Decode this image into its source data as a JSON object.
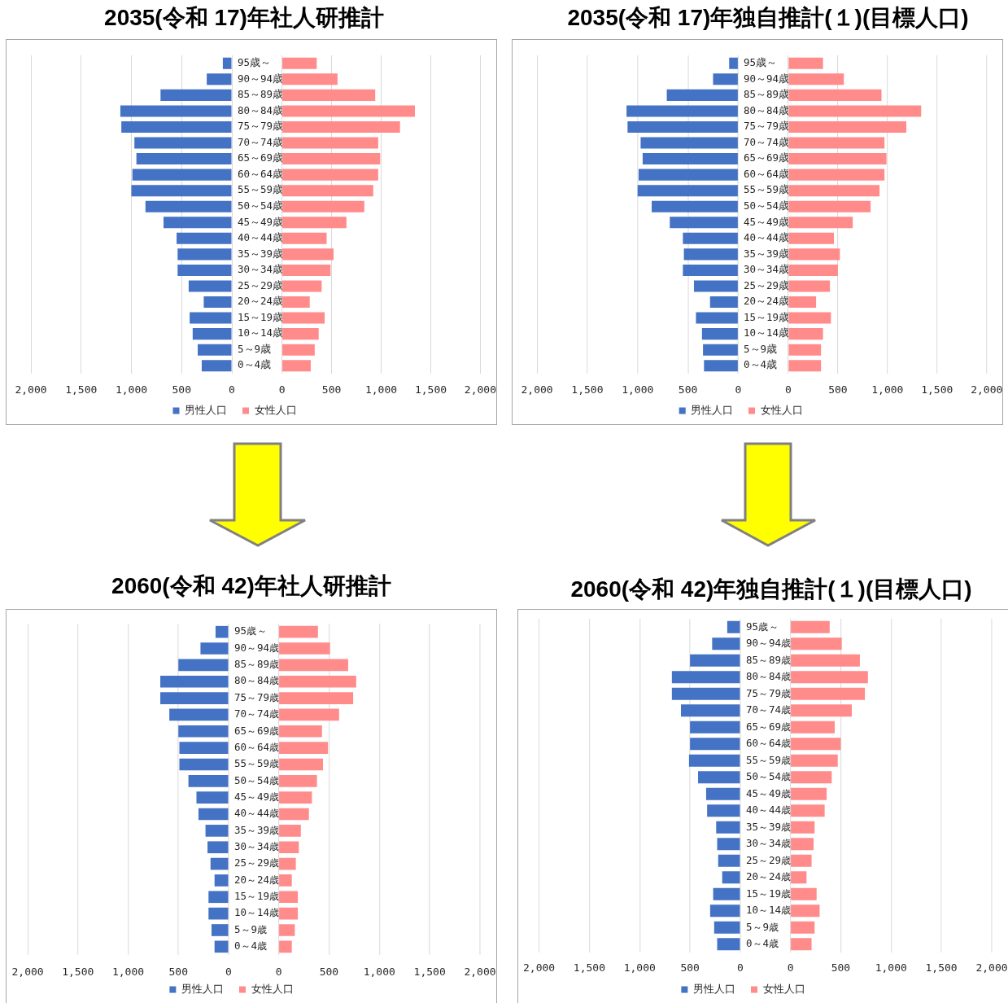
{
  "chart_data": [
    {
      "type": "bar",
      "orientation": "horizontal",
      "title": "2035(令和 17)年社人研推計",
      "categories": [
        null,
        null,
        null,
        null,
        null,
        null,
        null,
        null,
        null,
        null,
        null,
        null,
        null,
        null,
        null,
        null,
        null,
        null,
        null,
        null
      ],
      "series": [
        {
          "name": "男性人口",
          "color": "#4472c4",
          "values": [
            90,
            250,
            710,
            1110,
            1100,
            970,
            950,
            990,
            1000,
            860,
            680,
            550,
            540,
            540,
            430,
            280,
            420,
            390,
            340,
            300
          ]
        }
      ],
      "xlim": [
        2000,
        0
      ],
      "xticks": [
        {
          "value": 2000,
          "label": "2,000"
        },
        {
          "value": 1500,
          "label": "1,500"
        },
        {
          "value": 1000,
          "label": "1,000"
        },
        {
          "value": 500,
          "label": "500"
        },
        {
          "value": 0,
          "label": "0"
        }
      ],
      "grid": "x",
      "legend": "bottom right"
    },
    {
      "type": "bar",
      "orientation": "horizontal",
      "categories": [
        "95歳～",
        "90～94歳",
        "85～89歳",
        "80～84歳",
        "75～79歳",
        "70～74歳",
        "65～69歳",
        "60～64歳",
        "55～59歳",
        "50～54歳",
        "45～49歳",
        "40～44歳",
        "35～39歳",
        "30～34歳",
        "25～29歳",
        "20～24歳",
        "15～19歳",
        "10～14歳",
        "5～9歳",
        "0～4歳"
      ],
      "series": [
        {
          "name": "女性人口",
          "color": "#ff8b8b",
          "values": [
            350,
            560,
            940,
            1340,
            1190,
            970,
            990,
            970,
            920,
            830,
            650,
            450,
            520,
            490,
            400,
            280,
            430,
            370,
            330,
            290
          ]
        }
      ],
      "xlim": [
        0,
        2000
      ],
      "xticks": [
        {
          "value": 0,
          "label": "0"
        },
        {
          "value": 500,
          "label": "500"
        },
        {
          "value": 1000,
          "label": "1,000"
        },
        {
          "value": 1500,
          "label": "1,500"
        },
        {
          "value": 2000,
          "label": "2,000"
        }
      ],
      "grid": "x",
      "legend": "bottom left"
    },
    {
      "type": "bar",
      "orientation": "horizontal",
      "title": "2035(令和 17)年独自推計(１)(目標人口)",
      "categories": [
        null,
        null,
        null,
        null,
        null,
        null,
        null,
        null,
        null,
        null,
        null,
        null,
        null,
        null,
        null,
        null,
        null,
        null,
        null,
        null
      ],
      "series": [
        {
          "name": "男性人口",
          "color": "#4472c4",
          "values": [
            90,
            250,
            710,
            1110,
            1100,
            970,
            950,
            990,
            1000,
            860,
            680,
            550,
            540,
            550,
            440,
            280,
            420,
            360,
            350,
            340
          ]
        }
      ],
      "xlim": [
        2000,
        0
      ],
      "xticks": [
        {
          "value": 2000,
          "label": "2,000"
        },
        {
          "value": 1500,
          "label": "1,500"
        },
        {
          "value": 1000,
          "label": "1,000"
        },
        {
          "value": 500,
          "label": "500"
        },
        {
          "value": 0,
          "label": "0"
        }
      ],
      "grid": "x",
      "legend": "bottom right"
    },
    {
      "type": "bar",
      "orientation": "horizontal",
      "categories": [
        "95歳～",
        "90～94歳",
        "85～89歳",
        "80～84歳",
        "75～79歳",
        "70～74歳",
        "65～69歳",
        "60～64歳",
        "55～59歳",
        "50～54歳",
        "45～49歳",
        "40～44歳",
        "35～39歳",
        "30～34歳",
        "25～29歳",
        "20～24歳",
        "15～19歳",
        "10～14歳",
        "5～9歳",
        "0～4歳"
      ],
      "series": [
        {
          "name": "女性人口",
          "color": "#ff8b8b",
          "values": [
            350,
            560,
            940,
            1340,
            1190,
            970,
            990,
            970,
            920,
            830,
            650,
            460,
            520,
            500,
            420,
            280,
            430,
            350,
            330,
            330
          ]
        }
      ],
      "xlim": [
        0,
        2000
      ],
      "xticks": [
        {
          "value": 0,
          "label": "0"
        },
        {
          "value": 500,
          "label": "500"
        },
        {
          "value": 1000,
          "label": "1,000"
        },
        {
          "value": 1500,
          "label": "1,500"
        },
        {
          "value": 2000,
          "label": "2,000"
        }
      ],
      "grid": "x",
      "legend": "bottom left"
    },
    {
      "type": "bar",
      "orientation": "horizontal",
      "title": "2060(令和 42)年社人研推計",
      "categories": [
        null,
        null,
        null,
        null,
        null,
        null,
        null,
        null,
        null,
        null,
        null,
        null,
        null,
        null,
        null,
        null,
        null,
        null,
        null,
        null
      ],
      "series": [
        {
          "name": "男性人口",
          "color": "#4472c4",
          "values": [
            130,
            280,
            500,
            680,
            680,
            590,
            500,
            490,
            490,
            400,
            320,
            300,
            230,
            210,
            180,
            140,
            200,
            200,
            170,
            140
          ]
        }
      ],
      "xlim": [
        2000,
        0
      ],
      "xticks": [
        {
          "value": 2000,
          "label": "2,000"
        },
        {
          "value": 1500,
          "label": "1,500"
        },
        {
          "value": 1000,
          "label": "1,000"
        },
        {
          "value": 500,
          "label": "500"
        },
        {
          "value": 0,
          "label": "0"
        }
      ],
      "grid": "x",
      "legend": "bottom right"
    },
    {
      "type": "bar",
      "orientation": "horizontal",
      "categories": [
        "95歳～",
        "90～94歳",
        "85～89歳",
        "80～84歳",
        "75～79歳",
        "70～74歳",
        "65～69歳",
        "60～64歳",
        "55～59歳",
        "50～54歳",
        "45～49歳",
        "40～44歳",
        "35～39歳",
        "30～34歳",
        "25～29歳",
        "20～24歳",
        "15～19歳",
        "10～14歳",
        "5～9歳",
        "0～4歳"
      ],
      "series": [
        {
          "name": "女性人口",
          "color": "#ff8b8b",
          "values": [
            390,
            510,
            690,
            770,
            740,
            600,
            430,
            490,
            440,
            380,
            330,
            300,
            220,
            200,
            170,
            130,
            190,
            190,
            160,
            130
          ]
        }
      ],
      "xlim": [
        0,
        2000
      ],
      "xticks": [
        {
          "value": 0,
          "label": "0"
        },
        {
          "value": 500,
          "label": "500"
        },
        {
          "value": 1000,
          "label": "1,000"
        },
        {
          "value": 1500,
          "label": "1,500"
        },
        {
          "value": 2000,
          "label": "2,000"
        }
      ],
      "grid": "x",
      "legend": "bottom left"
    },
    {
      "type": "bar",
      "orientation": "horizontal",
      "title": "2060(令和 42)年独自推計(１)(目標人口)",
      "categories": [
        null,
        null,
        null,
        null,
        null,
        null,
        null,
        null,
        null,
        null,
        null,
        null,
        null,
        null,
        null,
        null,
        null,
        null,
        null,
        null
      ],
      "series": [
        {
          "name": "男性人口",
          "color": "#4472c4",
          "values": [
            130,
            280,
            500,
            680,
            680,
            590,
            500,
            500,
            510,
            420,
            340,
            330,
            240,
            230,
            220,
            180,
            270,
            300,
            260,
            230
          ]
        }
      ],
      "xlim": [
        2000,
        0
      ],
      "xticks": [
        {
          "value": 2000,
          "label": "2,000"
        },
        {
          "value": 1500,
          "label": "1,500"
        },
        {
          "value": 1000,
          "label": "1,000"
        },
        {
          "value": 500,
          "label": "500"
        },
        {
          "value": 0,
          "label": "0"
        }
      ],
      "grid": "x",
      "legend": "bottom right"
    },
    {
      "type": "bar",
      "orientation": "horizontal",
      "categories": [
        "95歳～",
        "90～94歳",
        "85～89歳",
        "80～84歳",
        "75～79歳",
        "70～74歳",
        "65～69歳",
        "60～64歳",
        "55～59歳",
        "50～54歳",
        "45～49歳",
        "40～44歳",
        "35～39歳",
        "30～34歳",
        "25～29歳",
        "20～24歳",
        "15～19歳",
        "10～14歳",
        "5～9歳",
        "0～4歳"
      ],
      "series": [
        {
          "name": "女性人口",
          "color": "#ff8b8b",
          "values": [
            390,
            510,
            690,
            770,
            740,
            610,
            440,
            500,
            470,
            410,
            360,
            340,
            240,
            230,
            210,
            160,
            260,
            290,
            240,
            210
          ]
        }
      ],
      "xlim": [
        0,
        2000
      ],
      "xticks": [
        {
          "value": 0,
          "label": "0"
        },
        {
          "value": 500,
          "label": "500"
        },
        {
          "value": 1000,
          "label": "1,000"
        },
        {
          "value": 1500,
          "label": "1,500"
        },
        {
          "value": 2000,
          "label": "2,000"
        }
      ],
      "grid": "x",
      "legend": "bottom left"
    }
  ]
}
